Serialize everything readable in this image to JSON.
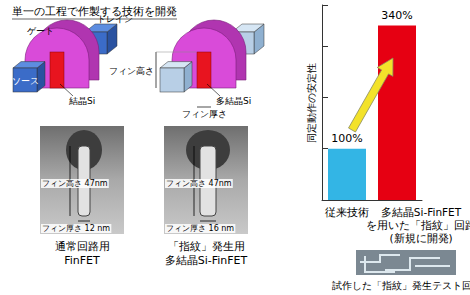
{
  "title": "単一の工程で作製する技術を開発",
  "devices": [
    {
      "labels": {
        "gate": "ゲート",
        "drain": "ドレイン",
        "source": "ソース",
        "channel": "結晶Si"
      },
      "tem": {
        "fin_height": "フィン高さ 47nm",
        "fin_thickness": "フィン厚さ 12 nm"
      },
      "caption": "通常回路用\nFinFET"
    },
    {
      "labels": {
        "fin_height": "フィン高さ",
        "fin_thickness": "フィン厚さ",
        "channel": "多結晶Si"
      },
      "tem": {
        "fin_height": "フィン高さ 47nm",
        "fin_thickness": "フィン厚さ 16 nm"
      },
      "caption": "「指紋」発生用\n多結晶Si-FinFET"
    }
  ],
  "photo_caption": "試作した「指紋」発生テスト回路",
  "chart_data": {
    "type": "bar",
    "ylabel": "同定動作の安定性",
    "categories": [
      "従来技術",
      "多結晶Si-FinFET\nを用いた「指紋」回路\n(新規に開発)"
    ],
    "values": [
      100,
      340
    ],
    "value_labels": [
      "100%",
      "340%"
    ],
    "colors": [
      "#33b5e5",
      "#e60012"
    ],
    "ylim": [
      0,
      380
    ],
    "yticks": [
      0,
      100,
      200,
      300
    ],
    "tick_labels": "x",
    "data_labels": true,
    "grid": false
  }
}
